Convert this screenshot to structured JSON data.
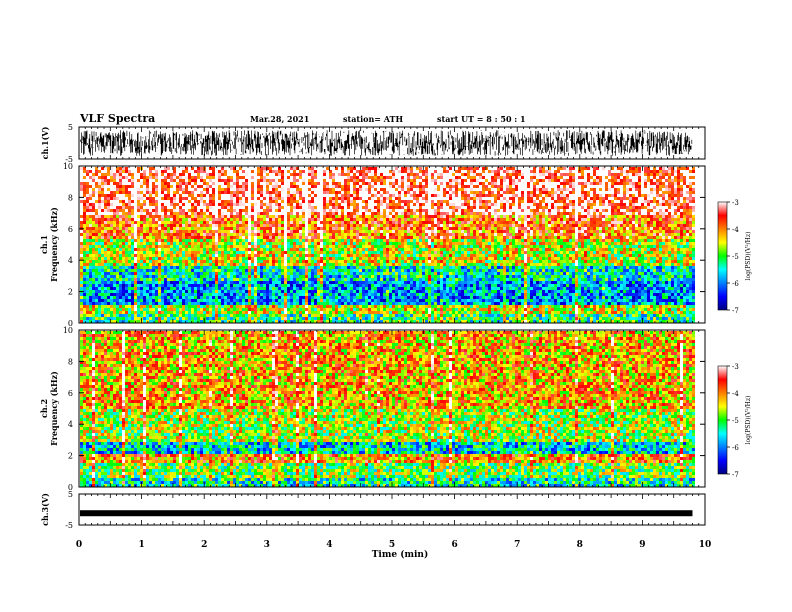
{
  "header": {
    "title": "VLF Spectra",
    "date": "Mar.28, 2021",
    "station": "station= ATH",
    "start": "start  UT =   8 : 50 : 1"
  },
  "chart_data": [
    {
      "type": "line",
      "panel": "waveform-ch1",
      "ylabel": "ch.1(V)",
      "ylim": [
        -5,
        5
      ],
      "yticks": [
        "5",
        "-5"
      ],
      "xlim": [
        0,
        10
      ],
      "description_data": "dense noisy waveform spanning roughly -4 to 4 V over 0 to 9.8 min"
    },
    {
      "type": "heatmap",
      "panel": "spectrogram-ch1",
      "ylabel": "ch.1\nFrequency (kHz)",
      "ylabel_lines": [
        "ch.1",
        "Frequency (kHz)"
      ],
      "ylim": [
        0,
        10
      ],
      "yticks": [
        "0",
        "2",
        "4",
        "6",
        "8",
        "10"
      ],
      "xlim": [
        0,
        10
      ],
      "data_end_min": 9.8,
      "colorbar": {
        "label": "log(PSD)(V²/Hz)",
        "range": [
          -7,
          -3
        ],
        "ticks": [
          "-3",
          "-4",
          "-5",
          "-6",
          "-7"
        ]
      },
      "bands": [
        {
          "from_khz": 0.0,
          "to_khz": 0.7,
          "level": -5.2
        },
        {
          "from_khz": 0.7,
          "to_khz": 1.2,
          "level": -4.6
        },
        {
          "from_khz": 1.2,
          "to_khz": 2.8,
          "level": -5.9
        },
        {
          "from_khz": 2.8,
          "to_khz": 3.8,
          "level": -5.5
        },
        {
          "from_khz": 3.8,
          "to_khz": 5.5,
          "level": -4.6
        },
        {
          "from_khz": 5.5,
          "to_khz": 7.0,
          "level": -3.9
        },
        {
          "from_khz": 7.0,
          "to_khz": 10.0,
          "level": -3.3
        }
      ]
    },
    {
      "type": "heatmap",
      "panel": "spectrogram-ch2",
      "ylabel_lines": [
        "ch.2",
        "Frequency (kHz)"
      ],
      "ylim": [
        0,
        10
      ],
      "yticks": [
        "0",
        "2",
        "4",
        "6",
        "8",
        "10"
      ],
      "xlim": [
        0,
        10
      ],
      "data_end_min": 9.8,
      "colorbar": {
        "label": "log(PSD)(V²/Hz)",
        "range": [
          -7,
          -3
        ],
        "ticks": [
          "-3",
          "-4",
          "-5",
          "-6",
          "-7"
        ]
      },
      "bands": [
        {
          "from_khz": 0.0,
          "to_khz": 0.6,
          "level": -5.4
        },
        {
          "from_khz": 0.6,
          "to_khz": 1.6,
          "level": -4.9
        },
        {
          "from_khz": 1.6,
          "to_khz": 2.2,
          "level": -4.1
        },
        {
          "from_khz": 2.2,
          "to_khz": 3.0,
          "level": -5.6
        },
        {
          "from_khz": 3.0,
          "to_khz": 5.0,
          "level": -4.7
        },
        {
          "from_khz": 5.0,
          "to_khz": 10.0,
          "level": -4.2
        }
      ]
    },
    {
      "type": "line",
      "panel": "waveform-ch3",
      "ylabel": "ch.3(V)",
      "ylim": [
        -5,
        5
      ],
      "yticks": [
        "5",
        "-5"
      ],
      "xlim": [
        0,
        10
      ],
      "level_v": -1.2,
      "xlabel": "Time (min)",
      "xticks": [
        "0",
        "1",
        "2",
        "3",
        "4",
        "5",
        "6",
        "7",
        "8",
        "9",
        "10"
      ]
    }
  ]
}
